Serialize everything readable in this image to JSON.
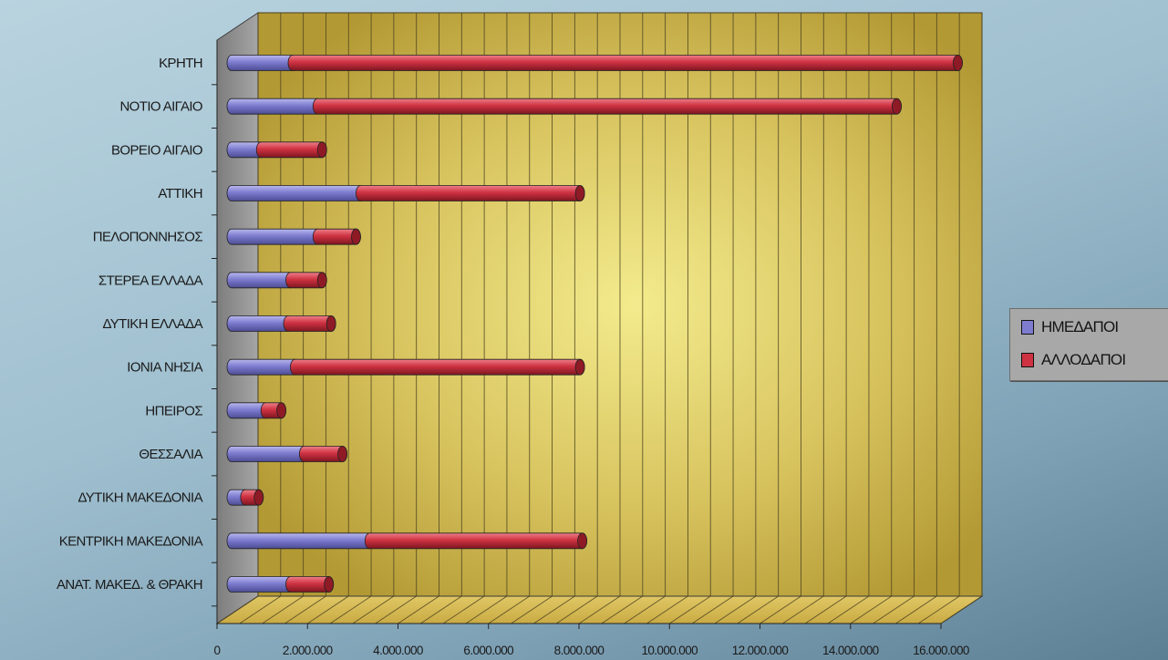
{
  "chart_data": {
    "type": "bar",
    "orientation": "horizontal",
    "stacked": true,
    "style": "3d-cylinder",
    "categories": [
      "ΚΡΗΤΗ",
      "ΝΟΤΙΟ ΑΙΓΑΙΟ",
      "ΒΟΡΕΙΟ ΑΙΓΑΙΟ",
      "ΑΤΤΙΚΗ",
      "ΠΕΛΟΠΟΝΝΗΣΟΣ",
      "ΣΤΕΡΕΑ ΕΛΛΑΔΑ",
      "ΔΥΤΙΚΗ ΕΛΛΑΔΑ",
      "ΙΟΝΙΑ ΝΗΣΙΑ",
      "ΗΠΕΙΡΟΣ",
      "ΘΕΣΣΑΛΙΑ",
      "ΔΥΤΙΚΗ ΜΑΚΕΔΟΝΙΑ",
      "ΚΕΝΤΡΙΚΗ ΜΑΚΕΔΟΝΙΑ",
      "ΑΝΑΤ. ΜΑΚΕΔ. & ΘΡΑΚΗ"
    ],
    "series": [
      {
        "name": "ΗΜΕΔΑΠΟΙ",
        "color": "#7d7ccf",
        "values": [
          1350000,
          1900000,
          650000,
          2850000,
          1900000,
          1300000,
          1250000,
          1400000,
          750000,
          1600000,
          300000,
          3050000,
          1300000
        ]
      },
      {
        "name": "ΑΛΛΟΔΑΠΟΙ",
        "color": "#cf3242",
        "values": [
          14700000,
          12800000,
          1350000,
          4850000,
          850000,
          700000,
          950000,
          6300000,
          350000,
          850000,
          300000,
          4700000,
          850000
        ]
      }
    ],
    "xlim": [
      0,
      16000000
    ],
    "xticks": [
      "0",
      "2.000.000",
      "4.000.000",
      "6.000.000",
      "8.000.000",
      "10.000.000",
      "12.000.000",
      "14.000.000",
      "16.000.000"
    ],
    "minor_gridlines_per_major": 4,
    "grid": true,
    "legend_position": "right",
    "wall_color": "#c9b24a",
    "floor_color": "#d6bb55",
    "side_wall_color": "#8f8f8f"
  }
}
